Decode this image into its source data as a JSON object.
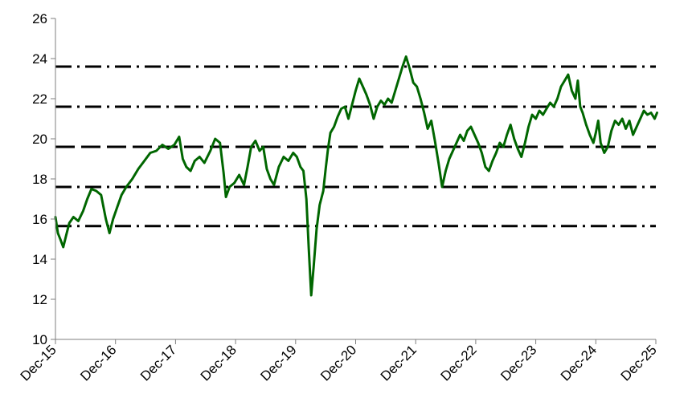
{
  "chart_data": {
    "type": "line",
    "title": "",
    "xlabel": "",
    "ylabel": "",
    "ylim": [
      10,
      26
    ],
    "yticks": [
      10,
      12,
      14,
      16,
      18,
      20,
      22,
      24,
      26
    ],
    "xlim": [
      "Dec-15",
      "Dec-25"
    ],
    "xtick_labels": [
      "Dec-15",
      "Dec-16",
      "Dec-17",
      "Dec-18",
      "Dec-19",
      "Dec-20",
      "Dec-21",
      "Dec-22",
      "Dec-23",
      "Dec-24",
      "Dec-25"
    ],
    "grid": false,
    "legend": "none",
    "line_color": "#006600",
    "reference_line_color": "#000000",
    "reference_lines": [
      {
        "value": 23.6,
        "style": "dash-dot"
      },
      {
        "value": 21.6,
        "style": "dash-dot"
      },
      {
        "value": 19.6,
        "style": "dashed"
      },
      {
        "value": 17.6,
        "style": "dash-dot"
      },
      {
        "value": 15.65,
        "style": "dash-dot"
      }
    ],
    "series": [
      {
        "points": [
          [
            2015.92,
            16.1
          ],
          [
            2015.96,
            15.3
          ],
          [
            2016.0,
            15.0
          ],
          [
            2016.05,
            14.6
          ],
          [
            2016.1,
            15.2
          ],
          [
            2016.15,
            15.8
          ],
          [
            2016.22,
            16.1
          ],
          [
            2016.3,
            15.9
          ],
          [
            2016.38,
            16.4
          ],
          [
            2016.45,
            17.0
          ],
          [
            2016.52,
            17.5
          ],
          [
            2016.6,
            17.4
          ],
          [
            2016.68,
            17.2
          ],
          [
            2016.76,
            16.0
          ],
          [
            2016.82,
            15.3
          ],
          [
            2016.88,
            16.0
          ],
          [
            2016.95,
            16.6
          ],
          [
            2017.02,
            17.2
          ],
          [
            2017.1,
            17.6
          ],
          [
            2017.2,
            18.0
          ],
          [
            2017.3,
            18.5
          ],
          [
            2017.4,
            18.9
          ],
          [
            2017.5,
            19.3
          ],
          [
            2017.6,
            19.4
          ],
          [
            2017.7,
            19.7
          ],
          [
            2017.8,
            19.5
          ],
          [
            2017.9,
            19.7
          ],
          [
            2017.98,
            20.1
          ],
          [
            2018.04,
            19.0
          ],
          [
            2018.1,
            18.6
          ],
          [
            2018.17,
            18.4
          ],
          [
            2018.24,
            18.9
          ],
          [
            2018.32,
            19.1
          ],
          [
            2018.4,
            18.8
          ],
          [
            2018.5,
            19.4
          ],
          [
            2018.58,
            20.0
          ],
          [
            2018.66,
            19.8
          ],
          [
            2018.72,
            18.3
          ],
          [
            2018.76,
            17.1
          ],
          [
            2018.82,
            17.6
          ],
          [
            2018.9,
            17.8
          ],
          [
            2018.98,
            18.2
          ],
          [
            2019.06,
            17.7
          ],
          [
            2019.12,
            18.6
          ],
          [
            2019.18,
            19.6
          ],
          [
            2019.25,
            19.9
          ],
          [
            2019.32,
            19.4
          ],
          [
            2019.38,
            19.6
          ],
          [
            2019.44,
            18.5
          ],
          [
            2019.5,
            18.0
          ],
          [
            2019.56,
            17.7
          ],
          [
            2019.64,
            18.6
          ],
          [
            2019.72,
            19.1
          ],
          [
            2019.8,
            18.9
          ],
          [
            2019.88,
            19.3
          ],
          [
            2019.94,
            19.1
          ],
          [
            2020.0,
            18.6
          ],
          [
            2020.05,
            18.4
          ],
          [
            2020.1,
            17.0
          ],
          [
            2020.14,
            14.5
          ],
          [
            2020.18,
            12.2
          ],
          [
            2020.22,
            13.6
          ],
          [
            2020.27,
            15.5
          ],
          [
            2020.32,
            16.7
          ],
          [
            2020.38,
            17.4
          ],
          [
            2020.42,
            18.5
          ],
          [
            2020.46,
            19.5
          ],
          [
            2020.5,
            20.3
          ],
          [
            2020.56,
            20.6
          ],
          [
            2020.62,
            21.1
          ],
          [
            2020.68,
            21.5
          ],
          [
            2020.74,
            21.6
          ],
          [
            2020.8,
            21.0
          ],
          [
            2020.86,
            21.7
          ],
          [
            2020.92,
            22.4
          ],
          [
            2020.98,
            23.0
          ],
          [
            2021.04,
            22.6
          ],
          [
            2021.1,
            22.2
          ],
          [
            2021.16,
            21.7
          ],
          [
            2021.22,
            21.0
          ],
          [
            2021.28,
            21.6
          ],
          [
            2021.34,
            21.9
          ],
          [
            2021.4,
            21.7
          ],
          [
            2021.46,
            22.0
          ],
          [
            2021.52,
            21.8
          ],
          [
            2021.58,
            22.4
          ],
          [
            2021.64,
            23.0
          ],
          [
            2021.7,
            23.6
          ],
          [
            2021.76,
            24.1
          ],
          [
            2021.82,
            23.5
          ],
          [
            2021.88,
            22.8
          ],
          [
            2021.94,
            22.6
          ],
          [
            2022.0,
            22.0
          ],
          [
            2022.06,
            21.3
          ],
          [
            2022.12,
            20.5
          ],
          [
            2022.18,
            20.9
          ],
          [
            2022.24,
            19.9
          ],
          [
            2022.3,
            18.8
          ],
          [
            2022.36,
            17.6
          ],
          [
            2022.42,
            18.4
          ],
          [
            2022.48,
            19.0
          ],
          [
            2022.54,
            19.4
          ],
          [
            2022.6,
            19.8
          ],
          [
            2022.66,
            20.2
          ],
          [
            2022.72,
            19.9
          ],
          [
            2022.78,
            20.4
          ],
          [
            2022.84,
            20.6
          ],
          [
            2022.9,
            20.2
          ],
          [
            2022.96,
            19.8
          ],
          [
            2023.02,
            19.3
          ],
          [
            2023.08,
            18.6
          ],
          [
            2023.14,
            18.4
          ],
          [
            2023.2,
            18.9
          ],
          [
            2023.26,
            19.3
          ],
          [
            2023.32,
            19.8
          ],
          [
            2023.38,
            19.6
          ],
          [
            2023.44,
            20.2
          ],
          [
            2023.5,
            20.7
          ],
          [
            2023.56,
            20.0
          ],
          [
            2023.62,
            19.5
          ],
          [
            2023.68,
            19.1
          ],
          [
            2023.74,
            19.8
          ],
          [
            2023.8,
            20.6
          ],
          [
            2023.86,
            21.2
          ],
          [
            2023.92,
            21.0
          ],
          [
            2023.98,
            21.4
          ],
          [
            2024.04,
            21.2
          ],
          [
            2024.1,
            21.5
          ],
          [
            2024.16,
            21.8
          ],
          [
            2024.22,
            21.6
          ],
          [
            2024.28,
            22.0
          ],
          [
            2024.34,
            22.6
          ],
          [
            2024.4,
            22.9
          ],
          [
            2024.46,
            23.2
          ],
          [
            2024.52,
            22.4
          ],
          [
            2024.58,
            22.0
          ],
          [
            2024.62,
            22.9
          ],
          [
            2024.66,
            21.6
          ],
          [
            2024.7,
            21.3
          ],
          [
            2024.76,
            20.7
          ],
          [
            2024.82,
            20.2
          ],
          [
            2024.88,
            19.8
          ],
          [
            2024.92,
            20.3
          ],
          [
            2024.96,
            20.9
          ],
          [
            2025.0,
            19.8
          ],
          [
            2025.06,
            19.3
          ],
          [
            2025.12,
            19.6
          ],
          [
            2025.18,
            20.4
          ],
          [
            2025.24,
            20.9
          ],
          [
            2025.3,
            20.7
          ],
          [
            2025.36,
            21.0
          ],
          [
            2025.42,
            20.5
          ],
          [
            2025.48,
            20.9
          ],
          [
            2025.54,
            20.2
          ],
          [
            2025.6,
            20.6
          ],
          [
            2025.66,
            21.0
          ],
          [
            2025.72,
            21.4
          ],
          [
            2025.78,
            21.2
          ],
          [
            2025.84,
            21.3
          ],
          [
            2025.9,
            21.0
          ],
          [
            2025.94,
            21.3
          ]
        ]
      }
    ]
  }
}
